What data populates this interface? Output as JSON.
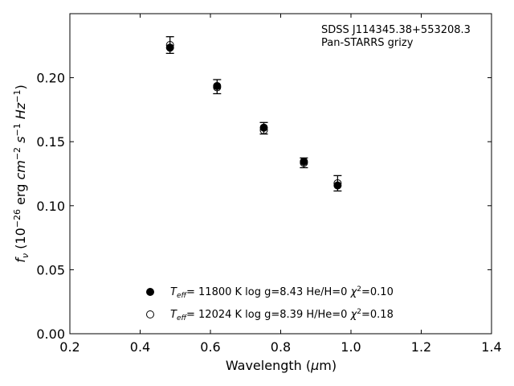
{
  "chart_data": {
    "type": "scatter",
    "title": "",
    "annotation": {
      "line1": "SDSS J114345.38+553208.3",
      "line2": "Pan-STARRS grizy"
    },
    "xlabel": "Wavelength (μm)",
    "ylabel": "f_ν (10^-26 erg cm^-2 s^-1 Hz^-1)",
    "xlim": [
      0.2,
      1.4
    ],
    "ylim": [
      0.0,
      0.25
    ],
    "xticks": [
      "0.2",
      "0.4",
      "0.6",
      "0.8",
      "1.0",
      "1.2",
      "1.4"
    ],
    "yticks": [
      "0.00",
      "0.05",
      "0.10",
      "0.15",
      "0.20"
    ],
    "grid": false,
    "legend_position": "bottom-center",
    "observed": {
      "x": [
        0.485,
        0.619,
        0.752,
        0.866,
        0.962
      ],
      "y": [
        0.2255,
        0.193,
        0.1605,
        0.1335,
        0.1175
      ],
      "err": [
        0.0065,
        0.0055,
        0.0045,
        0.0038,
        0.006
      ]
    },
    "series": [
      {
        "marker": "filled-circle",
        "legend": "Teff= 11800 K  log g=8.43  He/H=0  χ2=0.10",
        "x": [
          0.485,
          0.619,
          0.752,
          0.866,
          0.962
        ],
        "y": [
          0.2235,
          0.1935,
          0.161,
          0.1345,
          0.1158
        ]
      },
      {
        "marker": "open-circle",
        "legend": "Teff= 12024 K  log g=8.39  H/He=0  χ2=0.18",
        "x": [
          0.485,
          0.619,
          0.752,
          0.866,
          0.962
        ],
        "y": [
          0.2255,
          0.1925,
          0.159,
          0.1335,
          0.1175
        ]
      }
    ]
  }
}
